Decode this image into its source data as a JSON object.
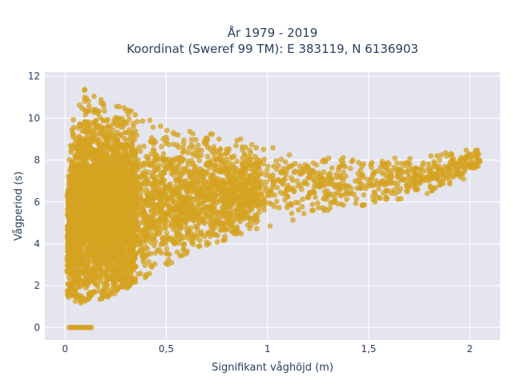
{
  "chart_data": {
    "type": "scatter",
    "title_lines": [
      "År 1979 - 2019",
      "Koordinat (Sweref 99 TM): E 383119, N 6136903"
    ],
    "xlabel": "Signifikant våghöjd (m)",
    "ylabel": "Vågperiod (s)",
    "xlim": [
      -0.1,
      2.15
    ],
    "ylim": [
      -0.6,
      12.2
    ],
    "x_ticks": [
      0,
      0.5,
      1,
      1.5,
      2
    ],
    "x_tick_labels": [
      "0",
      "0,5",
      "1",
      "1,5",
      "2"
    ],
    "y_ticks": [
      0,
      2,
      4,
      6,
      8,
      10,
      12
    ],
    "y_tick_labels": [
      "0",
      "2",
      "4",
      "6",
      "8",
      "10",
      "12"
    ],
    "grid": true,
    "legend": false,
    "colors": {
      "marker": "#d4a320",
      "plot_background": "#e5e5f0",
      "grid": "#ffffff",
      "text": "#2a3f5f"
    },
    "envelope_points": {
      "x": [
        0.0,
        0.02,
        0.05,
        0.1,
        0.15,
        0.2,
        0.25,
        0.3,
        0.4,
        0.5,
        0.6,
        0.8,
        1.0,
        1.2,
        1.4,
        1.6,
        1.8,
        2.0,
        2.05
      ],
      "y_low": [
        1.3,
        1.2,
        1.1,
        1.1,
        1.2,
        1.4,
        1.6,
        1.8,
        2.3,
        2.9,
        3.5,
        4.2,
        4.8,
        5.3,
        5.7,
        6.0,
        6.4,
        7.2,
        7.8
      ],
      "y_high": [
        5.6,
        9.0,
        10.5,
        11.5,
        11.0,
        10.8,
        10.6,
        10.5,
        10.0,
        10.2,
        9.4,
        9.2,
        8.9,
        8.6,
        8.5,
        8.4,
        8.2,
        8.6,
        8.5
      ]
    },
    "zero_period_cluster": {
      "x_range": [
        0.02,
        0.13
      ],
      "y": 0
    }
  }
}
